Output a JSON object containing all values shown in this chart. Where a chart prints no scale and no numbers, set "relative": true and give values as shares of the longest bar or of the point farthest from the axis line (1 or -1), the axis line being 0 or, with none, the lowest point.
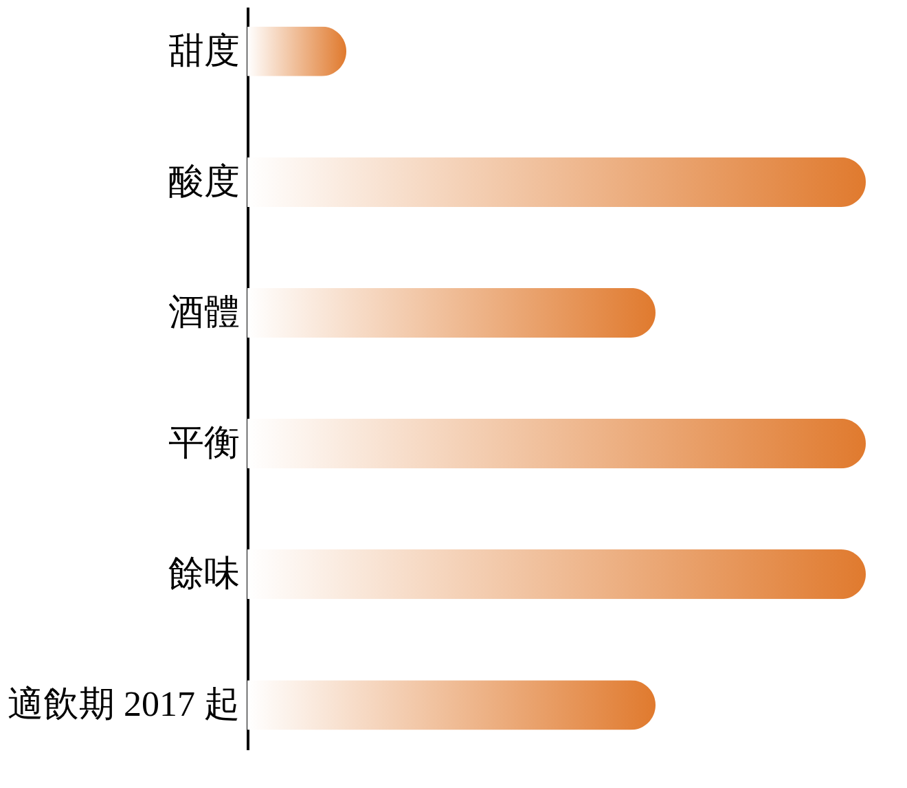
{
  "chart_data": {
    "type": "bar",
    "orientation": "horizontal",
    "relative": true,
    "categories": [
      "甜度",
      "酸度",
      "酒體",
      "平衡",
      "餘味",
      "適飲期 2017 起"
    ],
    "values": [
      0.16,
      1,
      0.66,
      1,
      1,
      0.66
    ],
    "color": "#e07a2e"
  }
}
